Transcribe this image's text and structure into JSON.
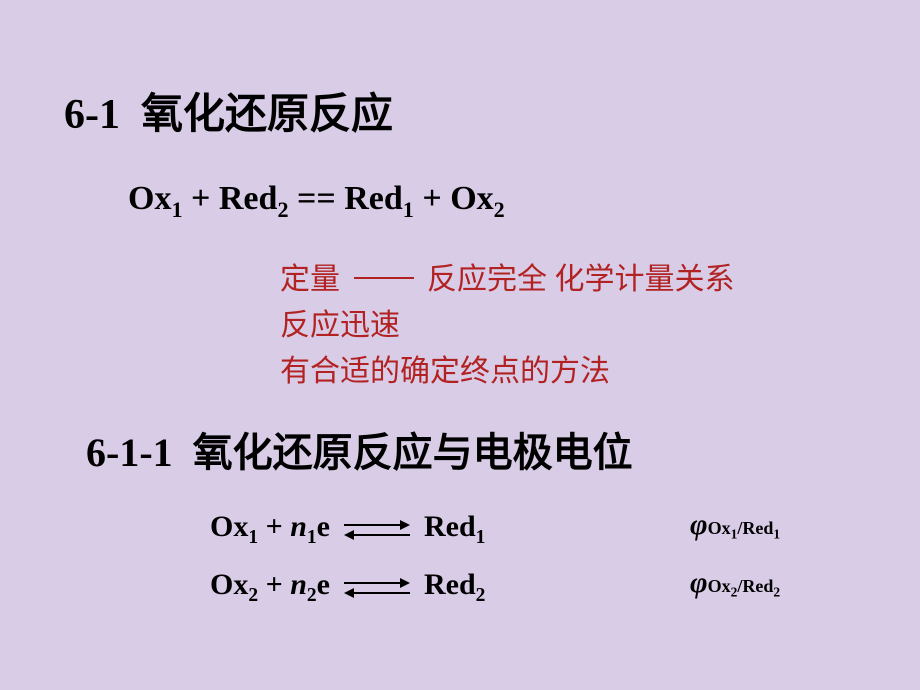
{
  "title": {
    "number": "6-1",
    "text": "氧化还原反应"
  },
  "main_equation": {
    "ox1": "Ox",
    "ox1_sub": "1",
    "plus1": " + ",
    "red2": "Red",
    "red2_sub": "2",
    "eq": "  == ",
    "red1": "Red",
    "red1_sub": "1",
    "plus2": " + ",
    "ox2": "Ox",
    "ox2_sub": "2"
  },
  "notes": {
    "line1_a": "定量 ",
    "line1_b": " 反应完全  化学计量关系",
    "line2": "反应迅速",
    "line3": "有合适的确定终点的方法"
  },
  "subtitle": {
    "number": "6-1-1",
    "text": "氧化还原反应与电极电位"
  },
  "half1": {
    "ox": "Ox",
    "ox_sub": "1",
    "plus": " + ",
    "n": "n",
    "n_sub": "1",
    "e": "e",
    "red": "Red",
    "red_sub": "1"
  },
  "half2": {
    "ox": "Ox",
    "ox_sub": "2",
    "plus": " + ",
    "n": "n",
    "n_sub": "2",
    "e": "e",
    "red": "Red",
    "red_sub": "2"
  },
  "phi1": {
    "symbol": "φ",
    "ox": "Ox",
    "ox_sub": "1",
    "slash": "/",
    "red": "Red",
    "red_sub": "1"
  },
  "phi2": {
    "symbol": "φ",
    "ox": "Ox",
    "ox_sub": "2",
    "slash": "/",
    "red": "Red",
    "red_sub": "2"
  }
}
